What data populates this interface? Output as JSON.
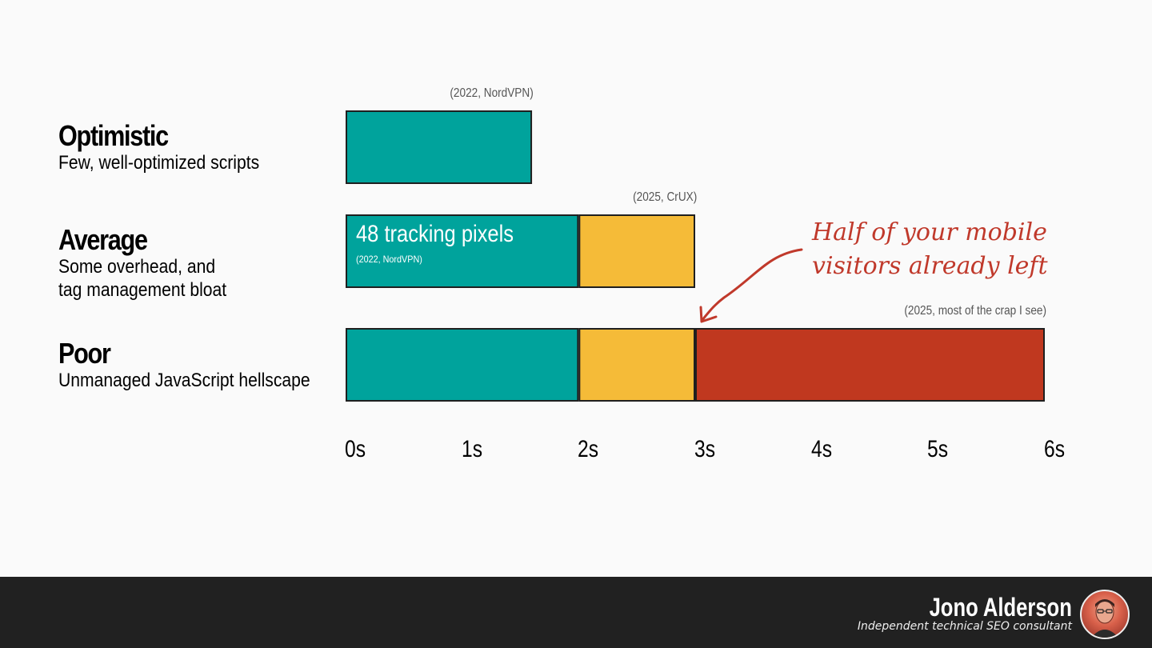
{
  "chart_data": {
    "type": "bar",
    "orientation": "horizontal-stacked",
    "x_ticks": [
      "0s",
      "1s",
      "2s",
      "3s",
      "4s",
      "5s",
      "6s"
    ],
    "xlim": [
      0,
      6
    ],
    "colors": {
      "teal": "#00a39c",
      "amber": "#f5bb38",
      "red": "#c0381f"
    },
    "categories": [
      {
        "title": "Optimistic",
        "subtitle": [
          "Few, well-optimized scripts"
        ],
        "source": "(2022, NordVPN)",
        "segments": [
          {
            "start": 0,
            "end": 1.6,
            "color": "teal"
          }
        ]
      },
      {
        "title": "Average",
        "subtitle": [
          "Some overhead, and",
          "tag management bloat"
        ],
        "source": "(2025, CrUX)",
        "inner_label": "48 tracking pixels",
        "inner_source": "(2022, NordVPN)",
        "segments": [
          {
            "start": 0,
            "end": 2,
            "color": "teal"
          },
          {
            "start": 2,
            "end": 3,
            "color": "amber"
          }
        ]
      },
      {
        "title": "Poor",
        "subtitle": [
          "Unmanaged JavaScript hellscape"
        ],
        "source": "(2025, most of the crap I see)",
        "segments": [
          {
            "start": 0,
            "end": 2,
            "color": "teal"
          },
          {
            "start": 2,
            "end": 3,
            "color": "amber"
          },
          {
            "start": 3,
            "end": 6,
            "color": "red"
          }
        ]
      }
    ],
    "annotation": {
      "lines": [
        "Half of your mobile",
        "visitors already left"
      ],
      "points_to_x": 3
    }
  },
  "footer": {
    "name": "Jono Alderson",
    "role": "Independent technical SEO consultant"
  }
}
